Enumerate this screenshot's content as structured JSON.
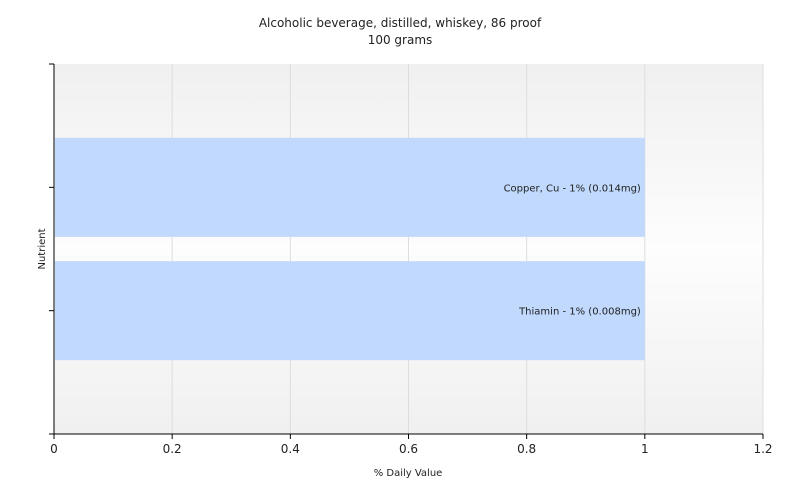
{
  "chart_data": {
    "type": "bar",
    "orientation": "horizontal",
    "title": "Alcoholic beverage, distilled, whiskey, 86 proof",
    "subtitle": "100 grams",
    "xlabel": "% Daily Value",
    "ylabel": "Nutrient",
    "xlim": [
      0,
      1.2
    ],
    "xticks": [
      "0",
      "0.2",
      "0.4",
      "0.6",
      "0.8",
      "1",
      "1.2"
    ],
    "xtick_values": [
      0,
      0.2,
      0.4,
      0.6,
      0.8,
      1.0,
      1.2
    ],
    "categories": [
      "Copper, Cu",
      "Thiamin"
    ],
    "values": [
      1,
      1
    ],
    "data_labels": [
      "Copper, Cu - 1% (0.014mg)",
      "Thiamin - 1% (0.008mg)"
    ],
    "grid": true,
    "legend": "none",
    "colors": {
      "bar": "#c0d9fc",
      "plot_bg": "#f7f7f7",
      "grid": "#dddddd",
      "axis": "#000000"
    }
  }
}
